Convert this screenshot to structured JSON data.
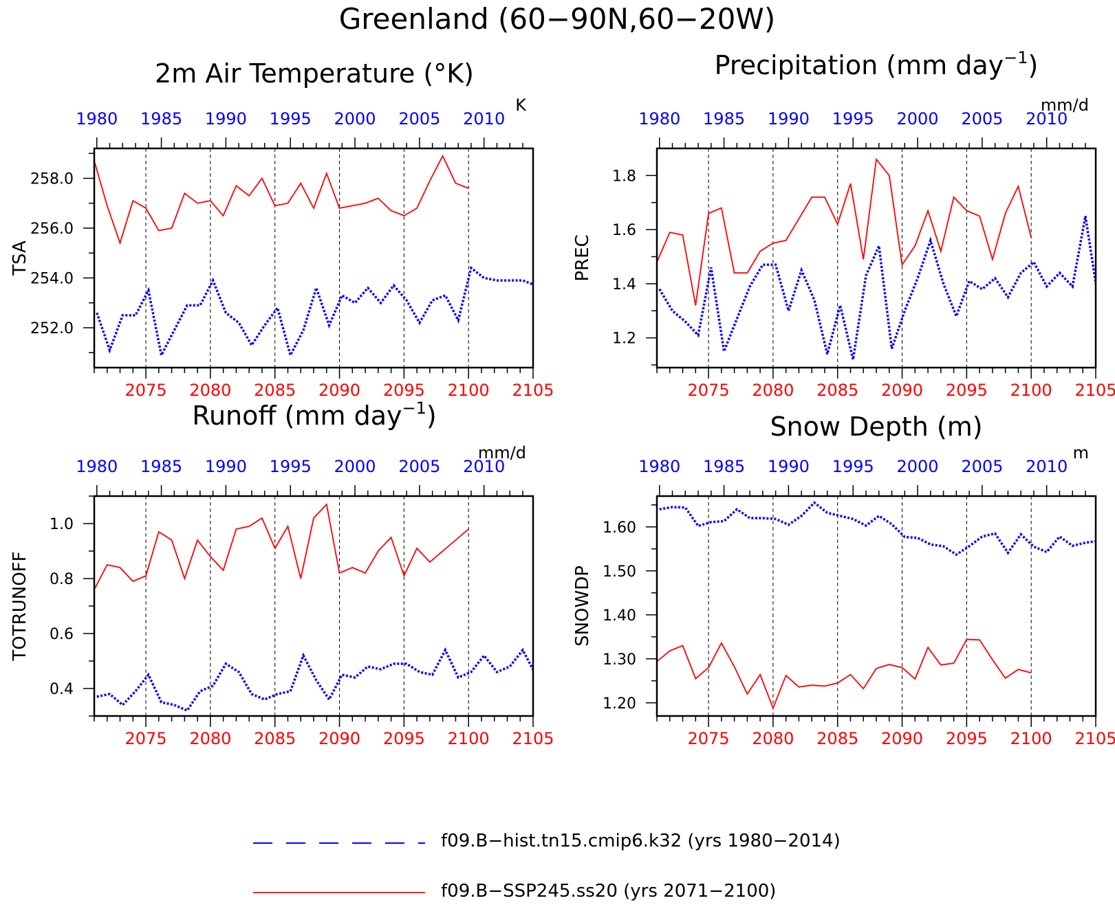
{
  "figure": {
    "title": "Greenland (60−90N,60−20W)",
    "colors": {
      "hist": "#0000ff",
      "ssp": "#ff0000",
      "axis": "#000000"
    },
    "legend": [
      {
        "label": "f09.B−hist.tn15.cmip6.k32 (yrs 1980−2014)",
        "style": "dashed",
        "color": "#0000ff"
      },
      {
        "label": "f09.B−SSP245.ss20 (yrs 2071−2100)",
        "style": "solid",
        "color": "#ff0000"
      }
    ]
  },
  "chart_data": [
    {
      "type": "line",
      "title": "2m Air Temperature (°K)",
      "ylabel": "TSA",
      "unit_label": "K",
      "ylim": [
        250.4,
        259.2
      ],
      "yticks": [
        "252.0",
        "254.0",
        "256.0",
        "258.0"
      ],
      "yticks_values": [
        252,
        254,
        256,
        258
      ],
      "top_axis": {
        "label_values": [
          1980,
          1985,
          1990,
          1995,
          2000,
          2005,
          2010
        ],
        "xlim": [
          1979.8,
          2013.8
        ]
      },
      "bottom_axis": {
        "label_values": [
          2075,
          2080,
          2085,
          2090,
          2095,
          2100,
          2105
        ],
        "xlim": [
          2071,
          2105
        ]
      },
      "grid": "dashed vertical lines at bottom-axis labels 2075–2100",
      "series": [
        {
          "name": "f09.B−hist.tn15.cmip6.k32 (yrs 1980−2014)",
          "axis": "top",
          "x_start": 1980,
          "values": [
            252.6,
            251.1,
            252.5,
            252.5,
            253.5,
            250.9,
            251.9,
            252.9,
            252.9,
            253.9,
            252.6,
            252.2,
            251.3,
            252.1,
            252.8,
            250.9,
            251.9,
            253.6,
            252.1,
            253.3,
            253.0,
            253.6,
            253.0,
            253.7,
            253.1,
            252.2,
            253.1,
            253.3,
            252.3,
            254.4,
            254.0,
            253.9,
            253.9,
            253.9,
            253.7
          ]
        },
        {
          "name": "f09.B−SSP245.ss20 (yrs 2071−2100)",
          "axis": "bottom",
          "x_start": 2071,
          "values": [
            258.7,
            256.9,
            255.4,
            257.1,
            256.8,
            255.9,
            256.0,
            257.4,
            257.0,
            257.1,
            256.5,
            257.7,
            257.3,
            258.0,
            256.9,
            257.0,
            257.8,
            256.8,
            258.2,
            256.8,
            256.9,
            257.0,
            257.2,
            256.7,
            256.5,
            256.8,
            257.9,
            258.9,
            257.8,
            257.6
          ]
        }
      ]
    },
    {
      "type": "line",
      "title": "Precipitation (mm day",
      "title_sup": "−1",
      "title_end": ")",
      "ylabel": "PREC",
      "unit_label": "mm/d",
      "ylim": [
        1.09,
        1.9
      ],
      "yticks": [
        "1.2",
        "1.4",
        "1.6",
        "1.8"
      ],
      "yticks_values": [
        1.2,
        1.4,
        1.6,
        1.8
      ],
      "top_axis": {
        "label_values": [
          1980,
          1985,
          1990,
          1995,
          2000,
          2005,
          2010
        ],
        "xlim": [
          1979.8,
          2013.8
        ]
      },
      "bottom_axis": {
        "label_values": [
          2075,
          2080,
          2085,
          2090,
          2095,
          2100,
          2105
        ],
        "xlim": [
          2071,
          2105
        ]
      },
      "grid": "dashed vertical lines at bottom-axis labels 2075–2100",
      "series": [
        {
          "name": "f09.B−hist.tn15.cmip6.k32 (yrs 1980−2014)",
          "axis": "top",
          "x_start": 1980,
          "values": [
            1.38,
            1.3,
            1.26,
            1.21,
            1.46,
            1.15,
            1.27,
            1.39,
            1.47,
            1.47,
            1.3,
            1.45,
            1.34,
            1.14,
            1.32,
            1.12,
            1.43,
            1.54,
            1.16,
            1.3,
            1.42,
            1.56,
            1.4,
            1.28,
            1.41,
            1.38,
            1.42,
            1.35,
            1.44,
            1.48,
            1.39,
            1.44,
            1.39,
            1.65,
            1.34
          ]
        },
        {
          "name": "f09.B−SSP245.ss20 (yrs 2071−2100)",
          "axis": "bottom",
          "x_start": 2071,
          "values": [
            1.48,
            1.59,
            1.58,
            1.32,
            1.66,
            1.68,
            1.44,
            1.44,
            1.52,
            1.55,
            1.56,
            1.64,
            1.72,
            1.72,
            1.62,
            1.77,
            1.49,
            1.86,
            1.8,
            1.47,
            1.54,
            1.67,
            1.52,
            1.72,
            1.67,
            1.65,
            1.49,
            1.66,
            1.76,
            1.57
          ]
        }
      ]
    },
    {
      "type": "line",
      "title": "Runoff (mm day",
      "title_sup": "−1",
      "title_end": ")",
      "ylabel": "TOTRUNOFF",
      "unit_label": "mm/d",
      "ylim": [
        0.3,
        1.1
      ],
      "yticks": [
        "0.4",
        "0.6",
        "0.8",
        "1.0"
      ],
      "yticks_values": [
        0.4,
        0.6,
        0.8,
        1.0
      ],
      "top_axis": {
        "label_values": [
          1980,
          1985,
          1990,
          1995,
          2000,
          2005,
          2010
        ],
        "xlim": [
          1979.8,
          2013.8
        ]
      },
      "bottom_axis": {
        "label_values": [
          2075,
          2080,
          2085,
          2090,
          2095,
          2100,
          2105
        ],
        "xlim": [
          2071,
          2105
        ]
      },
      "grid": "dashed vertical lines at bottom-axis labels 2075–2100",
      "series": [
        {
          "name": "f09.B−hist.tn15.cmip6.k32 (yrs 1980−2014)",
          "axis": "top",
          "x_start": 1980,
          "values": [
            0.37,
            0.38,
            0.34,
            0.39,
            0.45,
            0.35,
            0.34,
            0.32,
            0.39,
            0.41,
            0.49,
            0.46,
            0.38,
            0.36,
            0.38,
            0.39,
            0.52,
            0.43,
            0.36,
            0.45,
            0.44,
            0.48,
            0.47,
            0.49,
            0.49,
            0.46,
            0.45,
            0.54,
            0.44,
            0.46,
            0.52,
            0.46,
            0.48,
            0.54,
            0.45
          ]
        },
        {
          "name": "f09.B−SSP245.ss20 (yrs 2071−2100)",
          "axis": "bottom",
          "x_start": 2071,
          "values": [
            0.76,
            0.85,
            0.84,
            0.79,
            0.81,
            0.97,
            0.94,
            0.8,
            0.94,
            0.88,
            0.83,
            0.98,
            0.99,
            1.02,
            0.91,
            0.99,
            0.8,
            1.02,
            1.07,
            0.82,
            0.84,
            0.82,
            0.9,
            0.95,
            0.81,
            0.91,
            0.86,
            0.9,
            0.94,
            0.98
          ]
        }
      ]
    },
    {
      "type": "line",
      "title": "Snow Depth (m)",
      "ylabel": "SNOWDP",
      "unit_label": "m",
      "ylim": [
        1.17,
        1.67
      ],
      "yticks": [
        "1.20",
        "1.30",
        "1.40",
        "1.50",
        "1.60"
      ],
      "yticks_values": [
        1.2,
        1.3,
        1.4,
        1.5,
        1.6
      ],
      "top_axis": {
        "label_values": [
          1980,
          1985,
          1990,
          1995,
          2000,
          2005,
          2010
        ],
        "xlim": [
          1979.8,
          2013.8
        ]
      },
      "bottom_axis": {
        "label_values": [
          2075,
          2080,
          2085,
          2090,
          2095,
          2100,
          2105
        ],
        "xlim": [
          2071,
          2105
        ]
      },
      "grid": "dashed vertical lines at bottom-axis labels 2075–2100",
      "series": [
        {
          "name": "f09.B−hist.tn15.cmip6.k32 (yrs 1980−2014)",
          "axis": "top",
          "x_start": 1980,
          "values": [
            1.64,
            1.645,
            1.644,
            1.602,
            1.611,
            1.613,
            1.64,
            1.62,
            1.62,
            1.618,
            1.605,
            1.625,
            1.655,
            1.632,
            1.625,
            1.618,
            1.603,
            1.625,
            1.606,
            1.577,
            1.575,
            1.56,
            1.556,
            1.537,
            1.556,
            1.578,
            1.585,
            1.541,
            1.583,
            1.555,
            1.543,
            1.578,
            1.557,
            1.564,
            1.568
          ]
        },
        {
          "name": "f09.B−SSP245.ss20 (yrs 2071−2100)",
          "axis": "bottom",
          "x_start": 2071,
          "values": [
            1.294,
            1.318,
            1.33,
            1.255,
            1.28,
            1.336,
            1.282,
            1.22,
            1.264,
            1.188,
            1.262,
            1.236,
            1.24,
            1.238,
            1.245,
            1.264,
            1.232,
            1.278,
            1.287,
            1.28,
            1.254,
            1.326,
            1.286,
            1.29,
            1.344,
            1.343,
            1.298,
            1.256,
            1.276,
            1.268
          ]
        }
      ]
    }
  ]
}
